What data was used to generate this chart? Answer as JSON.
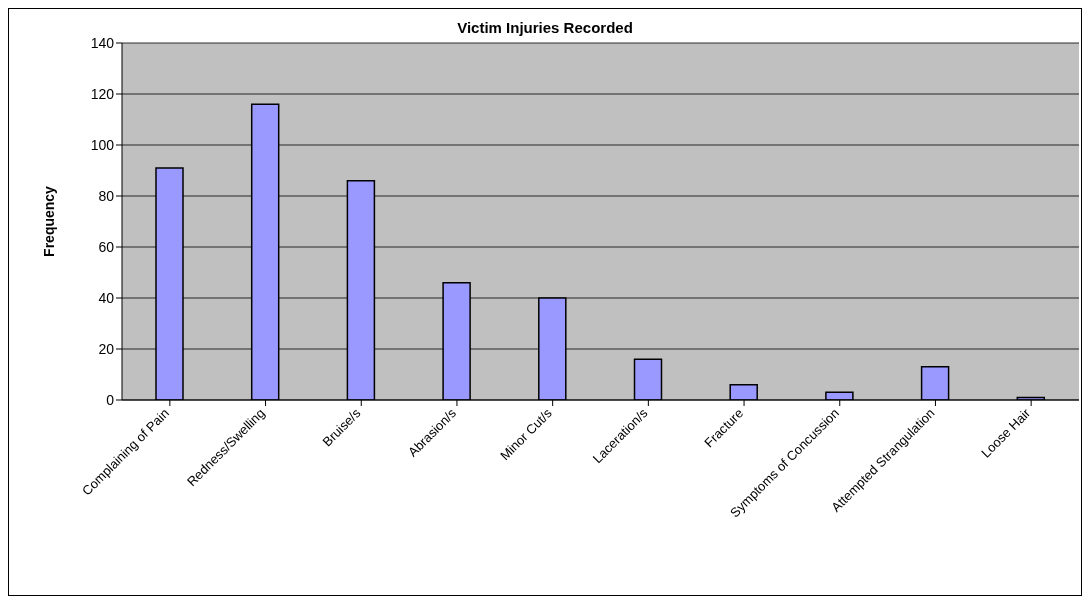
{
  "chart_data": {
    "type": "bar",
    "title": "Victim Injuries Recorded",
    "ylabel": "Frequency",
    "categories": [
      "Complaining of Pain",
      "Redness/Swelling",
      "Bruise/s",
      "Abrasion/s",
      "Minor Cut/s",
      "Laceration/s",
      "Fracture",
      "Symptoms of Concussion",
      "Attempted Strangulation",
      "Loose Hair"
    ],
    "values": [
      91,
      116,
      86,
      46,
      40,
      16,
      6,
      3,
      13,
      1
    ],
    "color": "#9999ff",
    "ylim": [
      0,
      140
    ],
    "yticks": [
      0,
      20,
      40,
      60,
      80,
      100,
      120,
      140
    ],
    "grid": "y"
  }
}
